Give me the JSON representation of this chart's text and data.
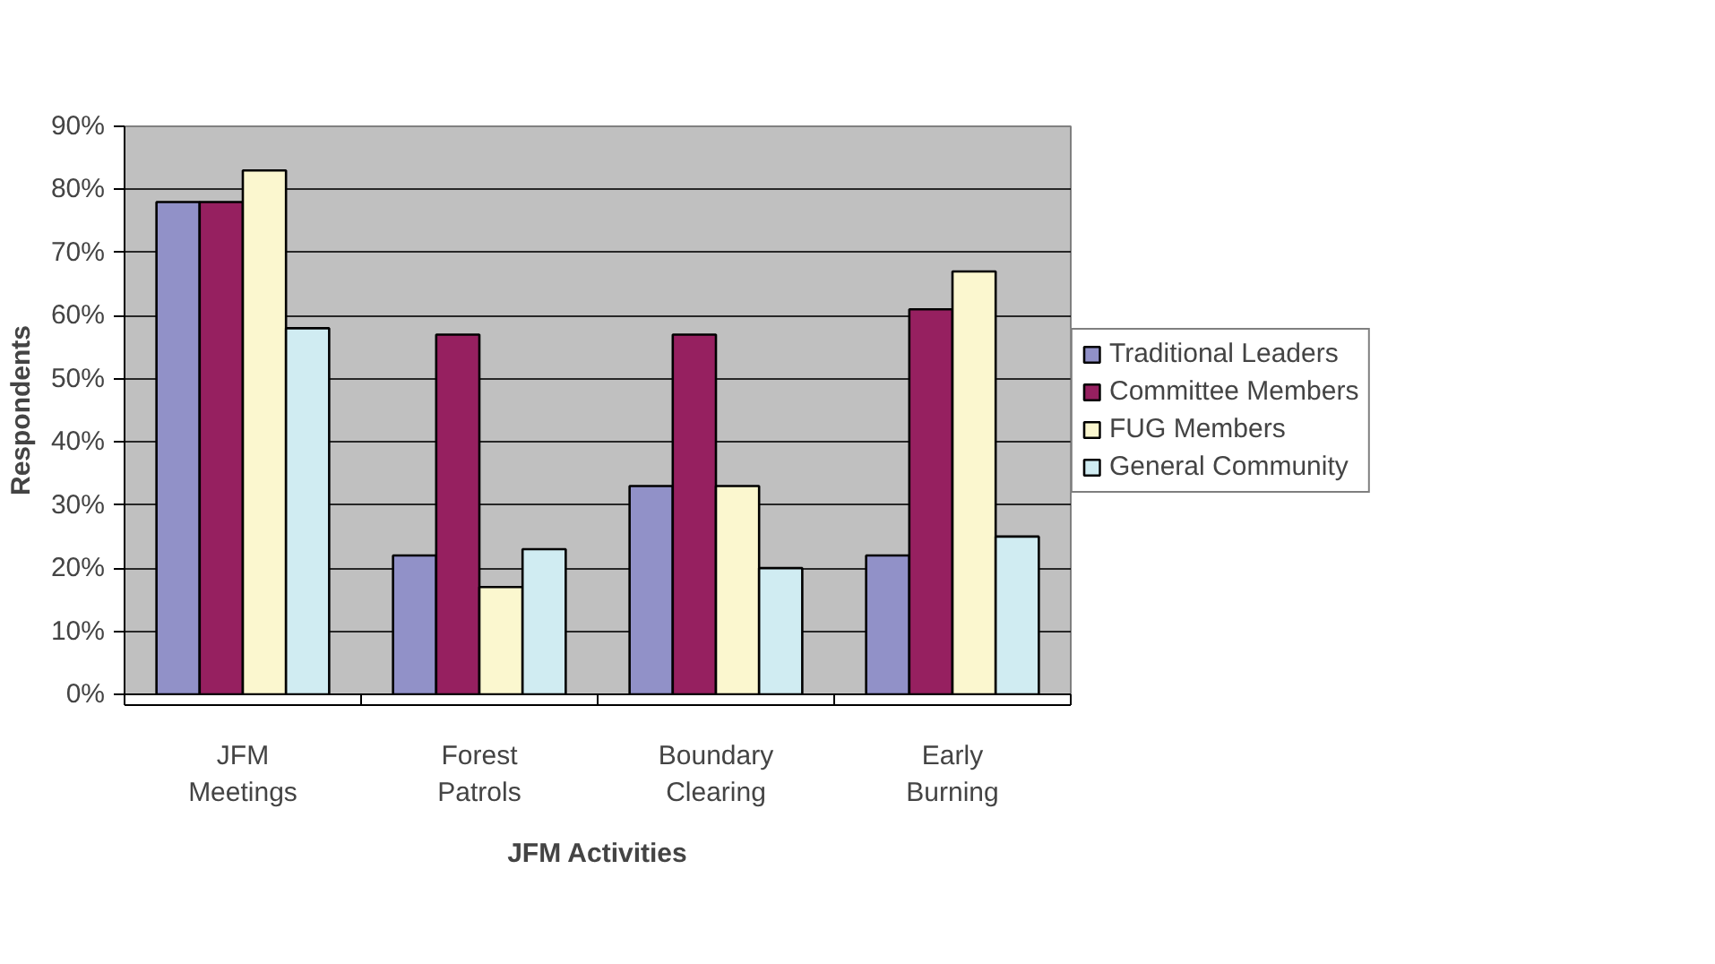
{
  "chart_data": {
    "type": "bar",
    "xlabel": "JFM Activities",
    "ylabel": "Respondents",
    "categories": [
      "JFM\nMeetings",
      "Forest\nPatrols",
      "Boundary\nClearing",
      "Early\nBurning"
    ],
    "series": [
      {
        "name": "Traditional Leaders",
        "color": "#9191c8",
        "values": [
          78,
          22,
          33,
          22
        ]
      },
      {
        "name": "Committee Members",
        "color": "#962060",
        "values": [
          78,
          57,
          57,
          61
        ]
      },
      {
        "name": "FUG Members",
        "color": "#fbf7cf",
        "values": [
          83,
          17,
          33,
          67
        ]
      },
      {
        "name": "General Community",
        "color": "#d0ecf2",
        "values": [
          58,
          23,
          20,
          25
        ]
      }
    ],
    "ylim": [
      0,
      90
    ],
    "yticks": [
      {
        "value": 0,
        "label": "0%"
      },
      {
        "value": 10,
        "label": "10%"
      },
      {
        "value": 20,
        "label": "20%"
      },
      {
        "value": 30,
        "label": "30%"
      },
      {
        "value": 40,
        "label": "40%"
      },
      {
        "value": 50,
        "label": "50%"
      },
      {
        "value": 60,
        "label": "60%"
      },
      {
        "value": 70,
        "label": "70%"
      },
      {
        "value": 80,
        "label": "80%"
      },
      {
        "value": 90,
        "label": "90%"
      }
    ],
    "grid": "y",
    "legend": "right"
  }
}
